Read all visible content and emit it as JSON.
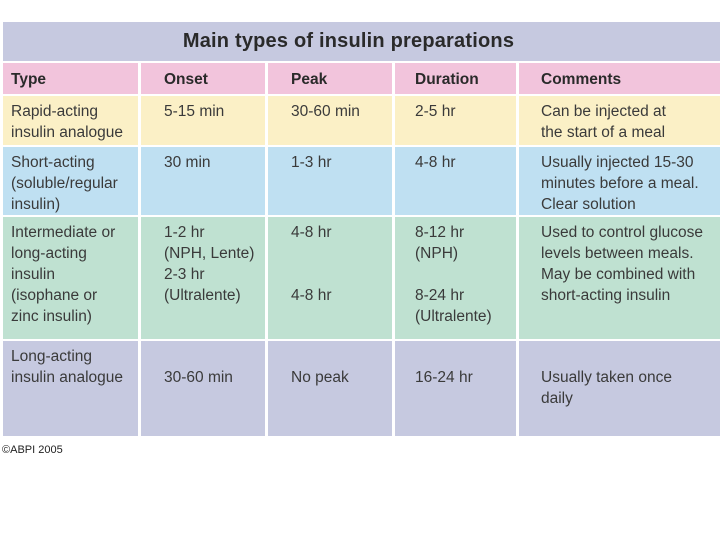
{
  "title": "Main types of insulin preparations",
  "colors": {
    "title_bg": "#c6c9e0",
    "header_bg": "#f2c4dc",
    "rapid_bg": "#fbf0c6",
    "short_bg": "#bfe0f2",
    "intermediate_bg": "#bfe1d1",
    "long_bg": "#c6c9e0"
  },
  "headers": [
    "Type",
    "Onset",
    "Peak",
    "Duration",
    "Comments"
  ],
  "rows": [
    {
      "type": [
        "Rapid-acting",
        "insulin analogue"
      ],
      "onset": [
        "5-15 min"
      ],
      "peak": [
        "30-60 min"
      ],
      "duration": [
        "2-5 hr"
      ],
      "comments": [
        "Can be injected at",
        "the start of a meal"
      ]
    },
    {
      "type": [
        "Short-acting",
        "(soluble/regular",
        "insulin)"
      ],
      "onset": [
        "30 min"
      ],
      "peak": [
        "1-3 hr"
      ],
      "duration": [
        "4-8 hr"
      ],
      "comments": [
        "Usually injected 15-30",
        "minutes before a meal.",
        "Clear solution"
      ]
    },
    {
      "type": [
        "Intermediate or",
        "long-acting",
        "insulin",
        "(isophane or",
        "zinc insulin)"
      ],
      "onset": [
        "1-2 hr",
        "(NPH, Lente)",
        "2-3 hr",
        "(Ultralente)"
      ],
      "peak": [
        "4-8 hr",
        "",
        "",
        "4-8 hr"
      ],
      "duration": [
        "8-12 hr",
        "(NPH)",
        "",
        "8-24 hr",
        "(Ultralente)"
      ],
      "comments": [
        "Used to control glucose",
        "levels between meals.",
        "May be combined with",
        "short-acting insulin"
      ]
    },
    {
      "type": [
        "Long-acting",
        "insulin analogue"
      ],
      "onset": [
        "",
        "30-60 min"
      ],
      "peak": [
        "",
        "No peak"
      ],
      "duration": [
        "",
        "16-24 hr"
      ],
      "comments": [
        "",
        "Usually taken once",
        "daily"
      ]
    }
  ],
  "copyright": "©ABPI 2005"
}
